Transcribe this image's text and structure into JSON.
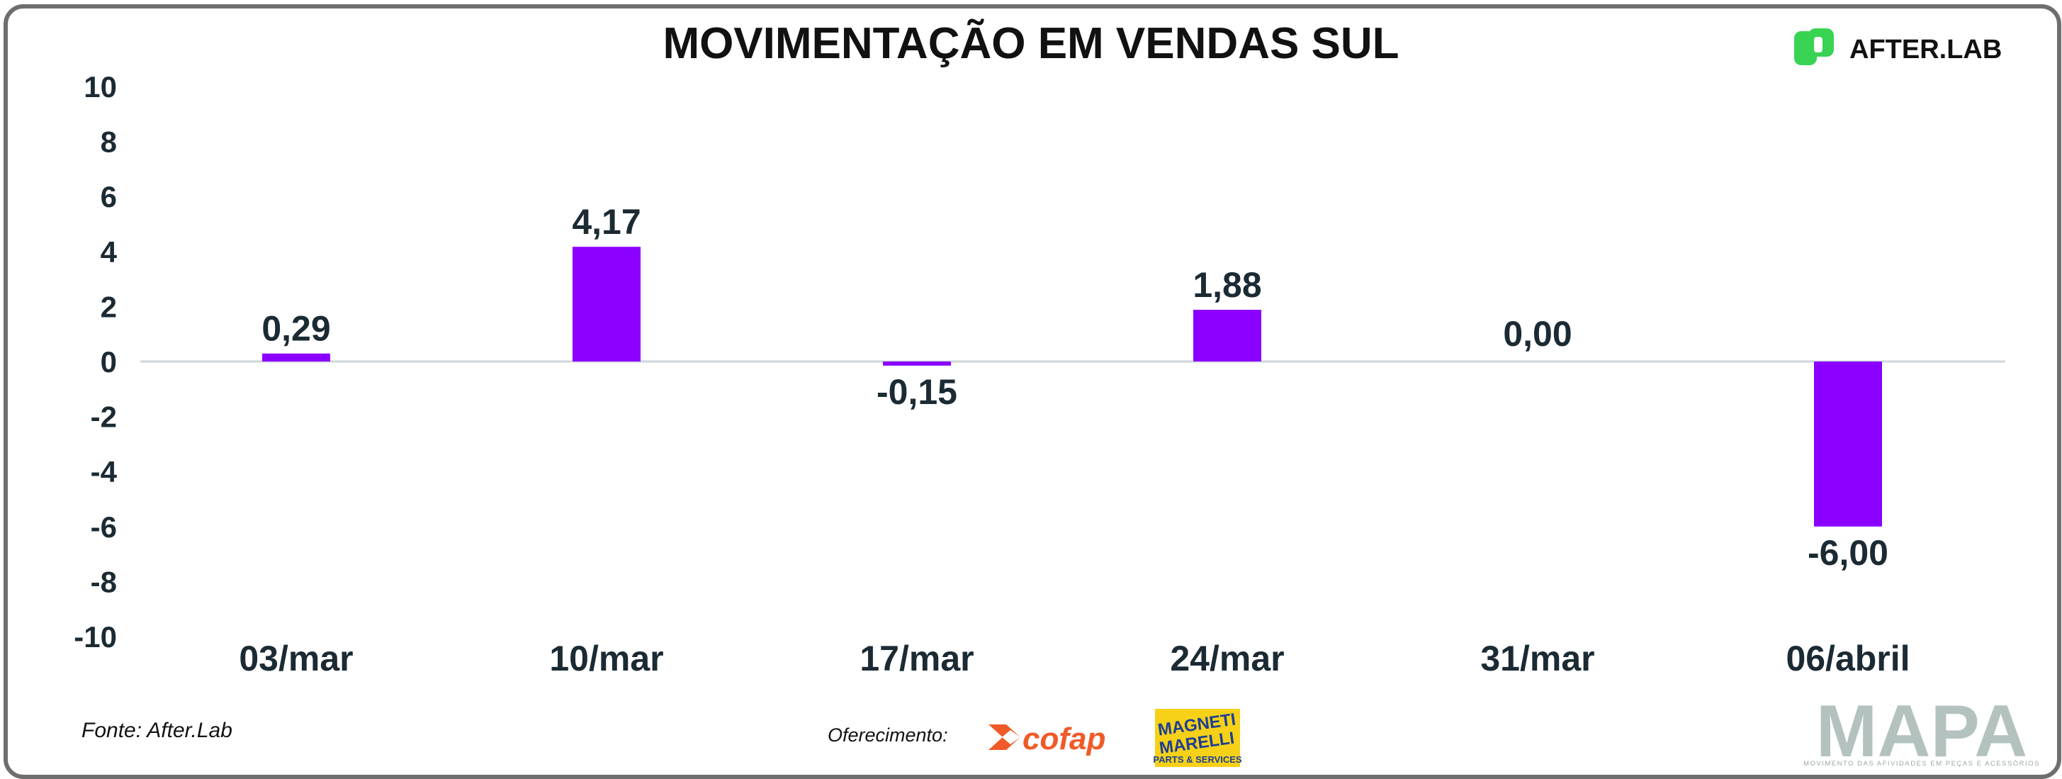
{
  "colors": {
    "bar": "#8b00ff",
    "zero_line": "#cfd6dc",
    "axis_text": "#1b2a33",
    "afterlab_green": "#39d353",
    "cofap_orange": "#f05a28",
    "magneti_yellow": "#f7d117",
    "magneti_blue": "#1c3f94",
    "mapa_gray": "#b4c2bf"
  },
  "chart_data": {
    "type": "bar",
    "title": "MOVIMENTAÇÃO EM VENDAS SUL",
    "categories": [
      "03/mar",
      "10/mar",
      "17/mar",
      "24/mar",
      "31/mar",
      "06/abril"
    ],
    "values": [
      0.29,
      4.17,
      -0.15,
      1.88,
      0.0,
      -6.0
    ],
    "data_labels": [
      "0,29",
      "4,17",
      "-0,15",
      "1,88",
      "0,00",
      "-6,00"
    ],
    "ylim": [
      -10,
      10
    ],
    "yticks": [
      "10",
      "8",
      "6",
      "4",
      "2",
      "0",
      "-2",
      "-4",
      "-6",
      "-8",
      "-10"
    ],
    "xlabel": "",
    "ylabel": "",
    "grid": false,
    "legend": "none"
  },
  "footer": {
    "source": "Fonte: After.Lab",
    "sponsor_label": "Oferecimento:"
  },
  "logos": {
    "afterlab": "AFTER.LAB",
    "cofap": "cofap",
    "magneti_line1": "MAGNETI",
    "magneti_line2": "MARELLI",
    "magneti_line3": "PARTS & SERVICES",
    "mapa": "MAPA",
    "mapa_tagline": "MOVIMENTO DAS AFIVIDADES EM PEÇAS E ACESSÓRIOS"
  },
  "icons": {
    "afterlab_mark": "afterlab-logo-icon",
    "cofap_mark": "cofap-x-icon"
  }
}
